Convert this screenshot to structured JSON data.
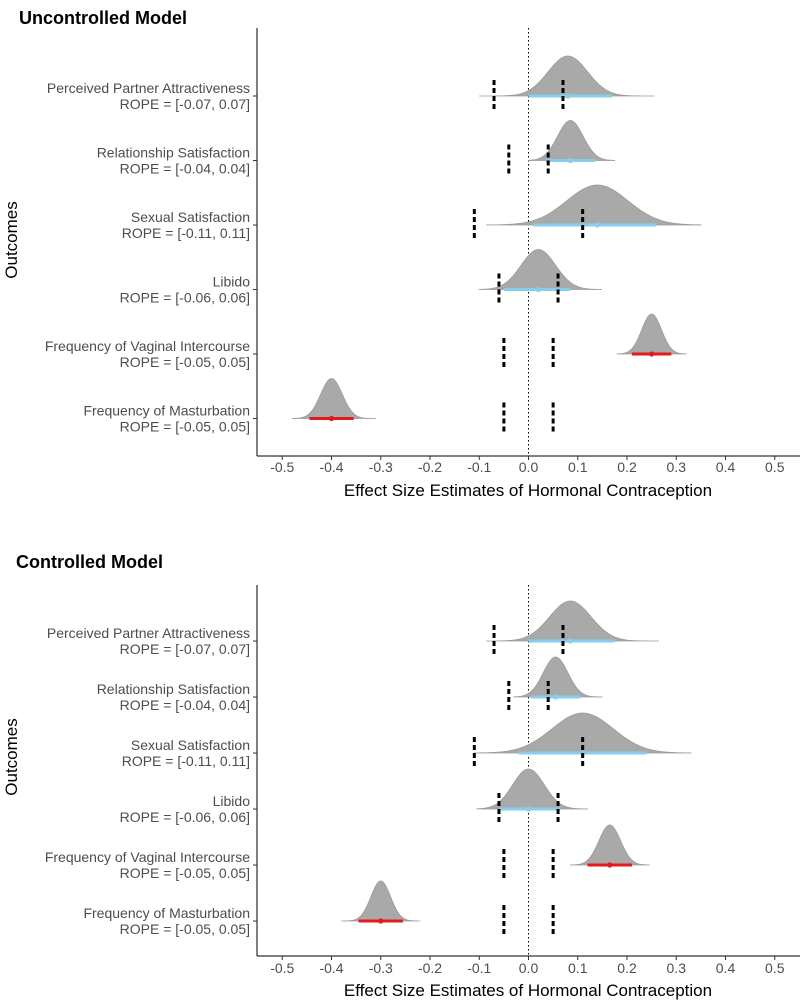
{
  "chart_data": [
    {
      "type": "ridge-interval",
      "title": "Uncontrolled Model",
      "xlabel": "Effect Size Estimates of Hormonal Contraception",
      "ylabel": "Outcomes",
      "xlim": [
        -0.55,
        0.55
      ],
      "xticks": [
        -0.5,
        -0.4,
        -0.3,
        -0.2,
        -0.1,
        0.0,
        0.1,
        0.2,
        0.3,
        0.4,
        0.5
      ],
      "xtick_labels": [
        "-0.5",
        "-0.4",
        "-0.3",
        "-0.2",
        "-0.1",
        "0.0",
        "0.1",
        "0.2",
        "0.3",
        "0.4",
        "0.5"
      ],
      "reference_line": 0,
      "grid": false,
      "legend": "none",
      "categories": [
        {
          "name": "Perceived Partner Attractiveness",
          "rope_label": "ROPE = [-0.07, 0.07]",
          "rope": [
            -0.07,
            0.07
          ],
          "median": 0.08,
          "sd": 0.04,
          "hdi": [
            0.0,
            0.17
          ],
          "range": [
            -0.1,
            0.255
          ],
          "color": "#87ceeb"
        },
        {
          "name": "Relationship Satisfaction",
          "rope_label": "ROPE = [-0.04, 0.04]",
          "rope": [
            -0.04,
            0.04
          ],
          "median": 0.085,
          "sd": 0.026,
          "hdi": [
            0.035,
            0.135
          ],
          "range": [
            0.0,
            0.175
          ],
          "color": "#87ceeb"
        },
        {
          "name": "Sexual Satisfaction",
          "rope_label": "ROPE = [-0.11, 0.11]",
          "rope": [
            -0.11,
            0.11
          ],
          "median": 0.14,
          "sd": 0.062,
          "hdi": [
            0.01,
            0.26
          ],
          "range": [
            -0.085,
            0.35
          ],
          "color": "#87ceeb"
        },
        {
          "name": "Libido",
          "rope_label": "ROPE = [-0.06, 0.06]",
          "rope": [
            -0.06,
            0.06
          ],
          "median": 0.02,
          "sd": 0.035,
          "hdi": [
            -0.05,
            0.085
          ],
          "range": [
            -0.1,
            0.148
          ],
          "color": "#87ceeb"
        },
        {
          "name": "Frequency of Vaginal Intercourse",
          "rope_label": "ROPE = [-0.05, 0.05]",
          "rope": [
            -0.05,
            0.05
          ],
          "median": 0.25,
          "sd": 0.02,
          "hdi": [
            0.21,
            0.29
          ],
          "range": [
            0.18,
            0.32
          ],
          "color": "#e31a1c"
        },
        {
          "name": "Frequency of Masturbation",
          "rope_label": "ROPE = [-0.05, 0.05]",
          "rope": [
            -0.05,
            0.05
          ],
          "median": -0.4,
          "sd": 0.022,
          "hdi": [
            -0.445,
            -0.355
          ],
          "range": [
            -0.48,
            -0.31
          ],
          "color": "#e31a1c"
        }
      ]
    },
    {
      "type": "ridge-interval",
      "title": "Controlled Model",
      "xlabel": "Effect Size Estimates of Hormonal Contraception",
      "ylabel": "Outcomes",
      "xlim": [
        -0.55,
        0.55
      ],
      "xticks": [
        -0.5,
        -0.4,
        -0.3,
        -0.2,
        -0.1,
        0.0,
        0.1,
        0.2,
        0.3,
        0.4,
        0.5
      ],
      "xtick_labels": [
        "-0.5",
        "-0.4",
        "-0.3",
        "-0.2",
        "-0.1",
        "0.0",
        "0.1",
        "0.2",
        "0.3",
        "0.4",
        "0.5"
      ],
      "reference_line": 0,
      "grid": false,
      "legend": "none",
      "categories": [
        {
          "name": "Perceived Partner Attractiveness",
          "rope_label": "ROPE = [-0.07, 0.07]",
          "rope": [
            -0.07,
            0.07
          ],
          "median": 0.085,
          "sd": 0.042,
          "hdi": [
            0.0,
            0.175
          ],
          "range": [
            -0.085,
            0.265
          ],
          "color": "#87ceeb"
        },
        {
          "name": "Relationship Satisfaction",
          "rope_label": "ROPE = [-0.04, 0.04]",
          "rope": [
            -0.04,
            0.04
          ],
          "median": 0.055,
          "sd": 0.025,
          "hdi": [
            0.005,
            0.105
          ],
          "range": [
            -0.03,
            0.15
          ],
          "color": "#87ceeb"
        },
        {
          "name": "Sexual Satisfaction",
          "rope_label": "ROPE = [-0.11, 0.11]",
          "rope": [
            -0.11,
            0.11
          ],
          "median": 0.11,
          "sd": 0.062,
          "hdi": [
            -0.02,
            0.24
          ],
          "range": [
            -0.11,
            0.33
          ],
          "color": "#87ceeb"
        },
        {
          "name": "Libido",
          "rope_label": "ROPE = [-0.06, 0.06]",
          "rope": [
            -0.06,
            0.06
          ],
          "median": 0.0,
          "sd": 0.032,
          "hdi": [
            -0.06,
            0.065
          ],
          "range": [
            -0.105,
            0.12
          ],
          "color": "#87ceeb"
        },
        {
          "name": "Frequency of Vaginal Intercourse",
          "rope_label": "ROPE = [-0.05, 0.05]",
          "rope": [
            -0.05,
            0.05
          ],
          "median": 0.165,
          "sd": 0.022,
          "hdi": [
            0.12,
            0.21
          ],
          "range": [
            0.085,
            0.245
          ],
          "color": "#e31a1c"
        },
        {
          "name": "Frequency of Masturbation",
          "rope_label": "ROPE = [-0.05, 0.05]",
          "rope": [
            -0.05,
            0.05
          ],
          "median": -0.3,
          "sd": 0.02,
          "hdi": [
            -0.345,
            -0.255
          ],
          "range": [
            -0.38,
            -0.22
          ],
          "color": "#e31a1c"
        }
      ]
    }
  ]
}
